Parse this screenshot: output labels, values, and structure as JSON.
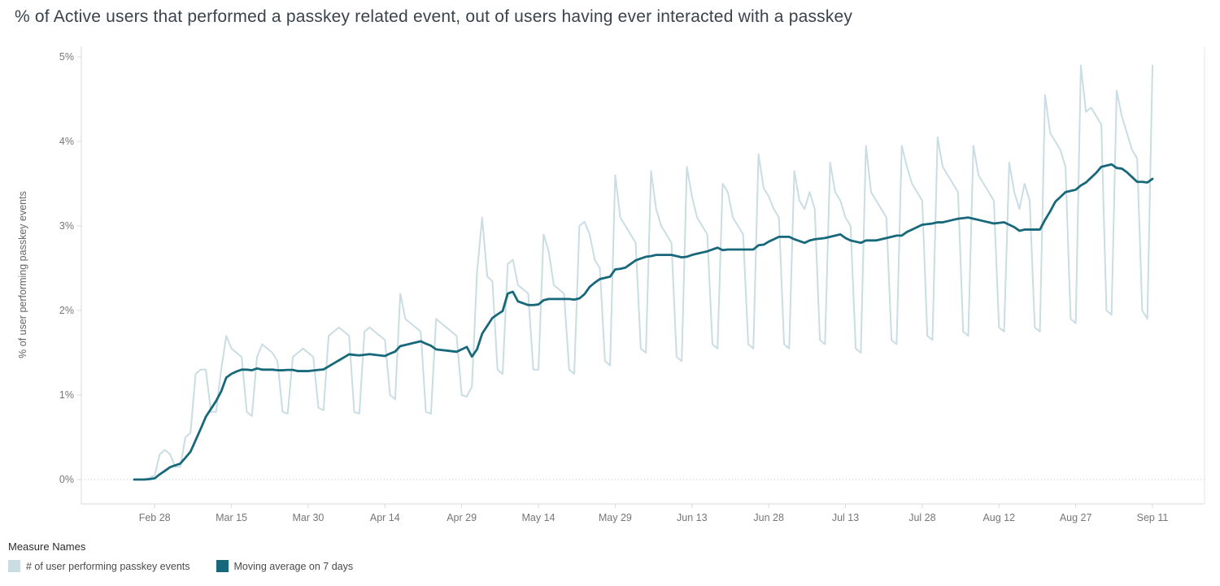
{
  "title": "% of Active users that performed a passkey related event, out of users having ever interacted with a passkey",
  "chart_data": {
    "type": "line",
    "title": "% of Active users that performed a passkey related event, out of users having ever interacted with a passkey",
    "xlabel": "",
    "ylabel": "% of user performing passkey events",
    "ylim": [
      0,
      5
    ],
    "y_tick_values": [
      0,
      1,
      2,
      3,
      4,
      5
    ],
    "y_tick_labels": [
      "0%",
      "1%",
      "2%",
      "3%",
      "4%",
      "5%"
    ],
    "x_tick_labels": [
      "Feb 28",
      "Mar 15",
      "Mar 30",
      "Apr 14",
      "Apr 29",
      "May 14",
      "May 29",
      "Jun 13",
      "Jun 28",
      "Jul 13",
      "Jul 28",
      "Aug 12",
      "Aug 27",
      "Sep 11"
    ],
    "x_tick_positions": [
      4,
      19,
      34,
      49,
      64,
      79,
      94,
      109,
      124,
      139,
      154,
      169,
      184,
      199
    ],
    "x_note": "daily points; index 0 is approx Feb 24, one point per day through Sep 11; tick marks every 15 days",
    "grid": "dotted horizontal line at 0% only",
    "legend_position": "bottom-left",
    "series": [
      {
        "name": "# of user performing passkey events",
        "color": "#c9dde3",
        "values": [
          0,
          0,
          0,
          0.02,
          0.05,
          0.3,
          0.35,
          0.3,
          0.15,
          0.15,
          0.5,
          0.55,
          1.25,
          1.3,
          1.3,
          0.8,
          0.8,
          1.3,
          1.7,
          1.55,
          1.5,
          1.45,
          0.8,
          0.75,
          1.45,
          1.6,
          1.55,
          1.5,
          1.4,
          0.8,
          0.78,
          1.45,
          1.5,
          1.55,
          1.5,
          1.45,
          0.85,
          0.82,
          1.7,
          1.75,
          1.8,
          1.75,
          1.7,
          0.8,
          0.78,
          1.75,
          1.8,
          1.75,
          1.7,
          1.65,
          1.0,
          0.95,
          2.2,
          1.9,
          1.85,
          1.8,
          1.75,
          0.8,
          0.78,
          1.9,
          1.85,
          1.8,
          1.75,
          1.7,
          1.0,
          0.98,
          1.1,
          2.45,
          3.1,
          2.4,
          2.35,
          1.3,
          1.25,
          2.55,
          2.6,
          2.3,
          2.25,
          2.2,
          1.3,
          1.3,
          2.9,
          2.7,
          2.3,
          2.25,
          2.2,
          1.3,
          1.25,
          3.0,
          3.05,
          2.9,
          2.6,
          2.5,
          1.4,
          1.35,
          3.6,
          3.1,
          3.0,
          2.9,
          2.8,
          1.55,
          1.5,
          3.65,
          3.2,
          3.0,
          2.9,
          2.8,
          1.45,
          1.4,
          3.7,
          3.35,
          3.1,
          3.0,
          2.9,
          1.6,
          1.55,
          3.5,
          3.4,
          3.1,
          3.0,
          2.9,
          1.6,
          1.55,
          3.85,
          3.45,
          3.35,
          3.2,
          3.1,
          1.6,
          1.55,
          3.65,
          3.3,
          3.2,
          3.4,
          3.2,
          1.65,
          1.6,
          3.75,
          3.4,
          3.3,
          3.1,
          3.0,
          1.55,
          1.5,
          3.95,
          3.4,
          3.3,
          3.2,
          3.1,
          1.65,
          1.6,
          3.95,
          3.7,
          3.5,
          3.4,
          3.3,
          1.7,
          1.65,
          4.05,
          3.7,
          3.6,
          3.5,
          3.4,
          1.75,
          1.7,
          3.95,
          3.6,
          3.5,
          3.4,
          3.3,
          1.8,
          1.75,
          3.75,
          3.4,
          3.2,
          3.5,
          3.3,
          1.8,
          1.75,
          4.55,
          4.1,
          4.0,
          3.9,
          3.7,
          1.9,
          1.85,
          4.9,
          4.35,
          4.4,
          4.3,
          4.2,
          2.0,
          1.95,
          4.6,
          4.3,
          4.1,
          3.9,
          3.8,
          2.0,
          1.9,
          4.9
        ]
      },
      {
        "name": "Moving average on 7 days",
        "color": "#17687a",
        "window_days": 7,
        "derived_from": "# of user performing passkey events",
        "start_value": 0,
        "end_value": 3.6,
        "peak_value": 3.7
      }
    ]
  },
  "legend": {
    "title": "Measure Names",
    "items": [
      {
        "label": "# of user performing passkey events",
        "color": "#c9dde3"
      },
      {
        "label": "Moving average on 7 days",
        "color": "#17687a"
      }
    ]
  }
}
